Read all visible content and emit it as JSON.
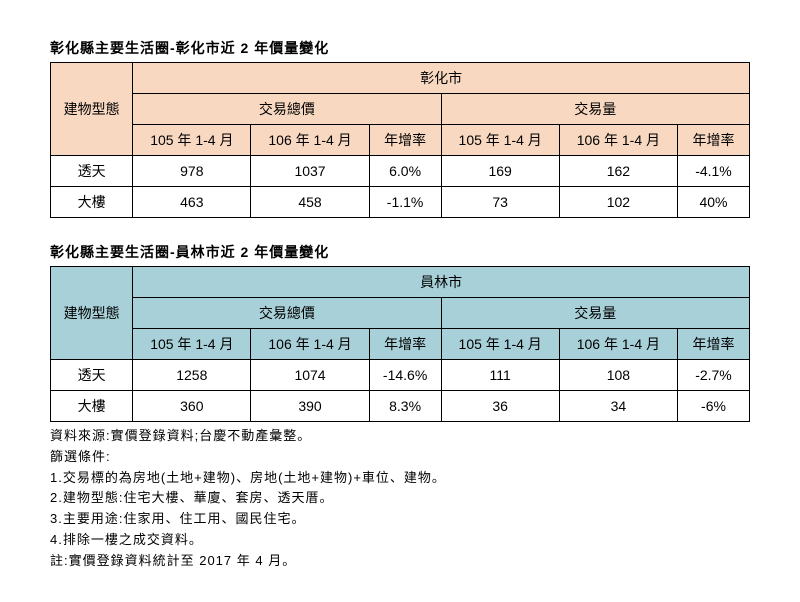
{
  "colors": {
    "table1_header_bg": "#f8d8c0",
    "table2_header_bg": "#a8d0d8",
    "border": "#000000",
    "text": "#000000",
    "page_bg": "#ffffff"
  },
  "tables": [
    {
      "caption": "彰化縣主要生活圈-彰化市近 2 年價量變化",
      "city": "彰化市",
      "header_class": "hdr-peach",
      "row_label_header": "建物型態",
      "group_headers": [
        "交易總價",
        "交易量"
      ],
      "period_headers": [
        "105 年 1-4 月",
        "106 年 1-4 月",
        "年增率",
        "105 年 1-4 月",
        "106 年 1-4 月",
        "年增率"
      ],
      "rows": [
        {
          "label": "透天",
          "cells": [
            "978",
            "1037",
            "6.0%",
            "169",
            "162",
            "-4.1%"
          ]
        },
        {
          "label": "大樓",
          "cells": [
            "463",
            "458",
            "-1.1%",
            "73",
            "102",
            "40%"
          ]
        }
      ]
    },
    {
      "caption": "彰化縣主要生活圈-員林市近 2 年價量變化",
      "city": "員林市",
      "header_class": "hdr-blue",
      "row_label_header": "建物型態",
      "group_headers": [
        "交易總價",
        "交易量"
      ],
      "period_headers": [
        "105 年 1-4 月",
        "106 年 1-4 月",
        "年增率",
        "105 年 1-4 月",
        "106 年 1-4 月",
        "年增率"
      ],
      "rows": [
        {
          "label": "透天",
          "cells": [
            "1258",
            "1074",
            "-14.6%",
            "111",
            "108",
            "-2.7%"
          ]
        },
        {
          "label": "大樓",
          "cells": [
            "360",
            "390",
            "8.3%",
            "36",
            "34",
            "-6%"
          ]
        }
      ]
    }
  ],
  "notes": {
    "source": "資料來源:實價登錄資料;台慶不動產彙整。",
    "filter_label": "篩選條件:",
    "filters": [
      "1.交易標的為房地(土地+建物)、房地(土地+建物)+車位、建物。",
      "2.建物型態:住宅大樓、華廈、套房、透天厝。",
      "3.主要用途:住家用、住工用、國民住宅。",
      "4.排除一樓之成交資料。"
    ],
    "footnote": "註:實價登錄資料統計至 2017 年 4 月。"
  }
}
